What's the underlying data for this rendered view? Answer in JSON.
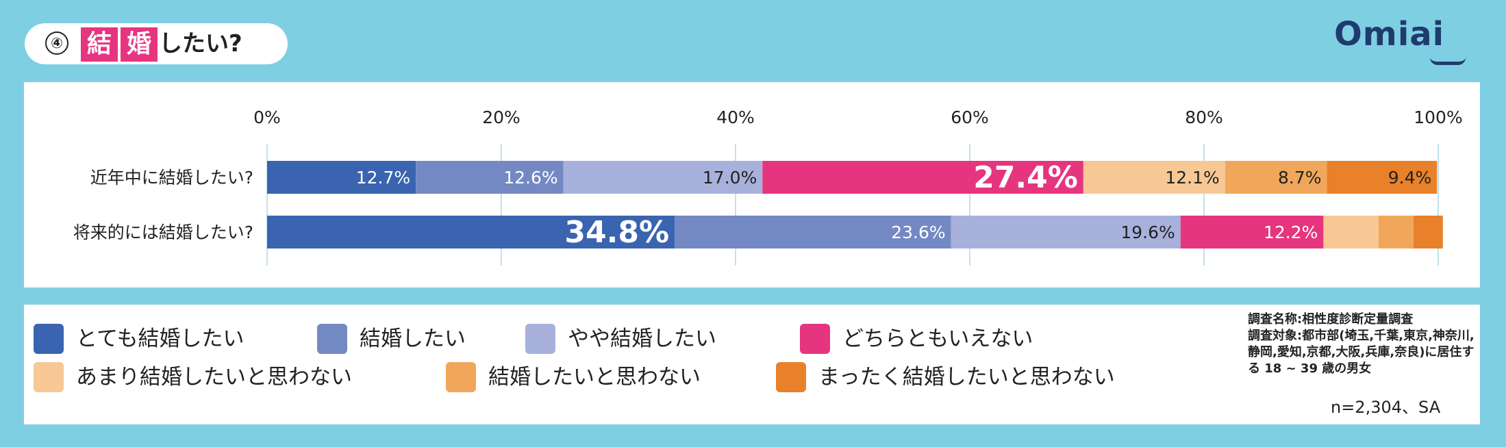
{
  "header": {
    "number": "④",
    "kanji1": "結",
    "kanji2": "婚",
    "title_rest": "したい?",
    "logo": "Omiai"
  },
  "chart_data": {
    "type": "bar",
    "stacked": true,
    "orientation": "horizontal",
    "categories": [
      "近年中に結婚したい?",
      "将来的には結婚したい?"
    ],
    "x_ticks": [
      "0%",
      "20%",
      "40%",
      "60%",
      "80%",
      "100%"
    ],
    "xlim": [
      0,
      100
    ],
    "grid": true,
    "legend_position": "bottom",
    "series": [
      {
        "name": "とても結婚したい",
        "color": "#3a64b0",
        "values": [
          12.7,
          34.8
        ],
        "labels": [
          "12.7%",
          "34.8%"
        ]
      },
      {
        "name": "結婚したい",
        "color": "#7489c4",
        "values": [
          12.6,
          23.6
        ],
        "labels": [
          "12.6%",
          "23.6%"
        ]
      },
      {
        "name": "やや結婚したい",
        "color": "#a8b1db",
        "values": [
          17.0,
          19.6
        ],
        "labels": [
          "17.0%",
          "19.6%"
        ]
      },
      {
        "name": "どちらともいえない",
        "color": "#e6357f",
        "values": [
          27.4,
          12.2
        ],
        "labels": [
          "27.4%",
          "12.2%"
        ]
      },
      {
        "name": "あまり結婚したいと思わない",
        "color": "#f7c895",
        "values": [
          12.1,
          4.7
        ],
        "labels": [
          "12.1%",
          ""
        ]
      },
      {
        "name": "結婚したいと思わない",
        "color": "#f0a75b",
        "values": [
          8.7,
          3.0
        ],
        "labels": [
          "8.7%",
          ""
        ]
      },
      {
        "name": "まったく結婚したいと思わない",
        "color": "#e9802a",
        "values": [
          9.4,
          2.5
        ],
        "labels": [
          "9.4%",
          ""
        ]
      }
    ],
    "highlight_labels": [
      "27.4%",
      "34.8%"
    ]
  },
  "survey": {
    "line1": "調査名称:相性度診断定量調査",
    "line2": "調査対象:都市部(埼玉,千葉,東京,神奈川,",
    "line3": "静岡,愛知,京都,大阪,兵庫,奈良)に居住す",
    "line4": "る 18 ~ 39 歳の男女"
  },
  "sample_size": "n=2,304、SA"
}
